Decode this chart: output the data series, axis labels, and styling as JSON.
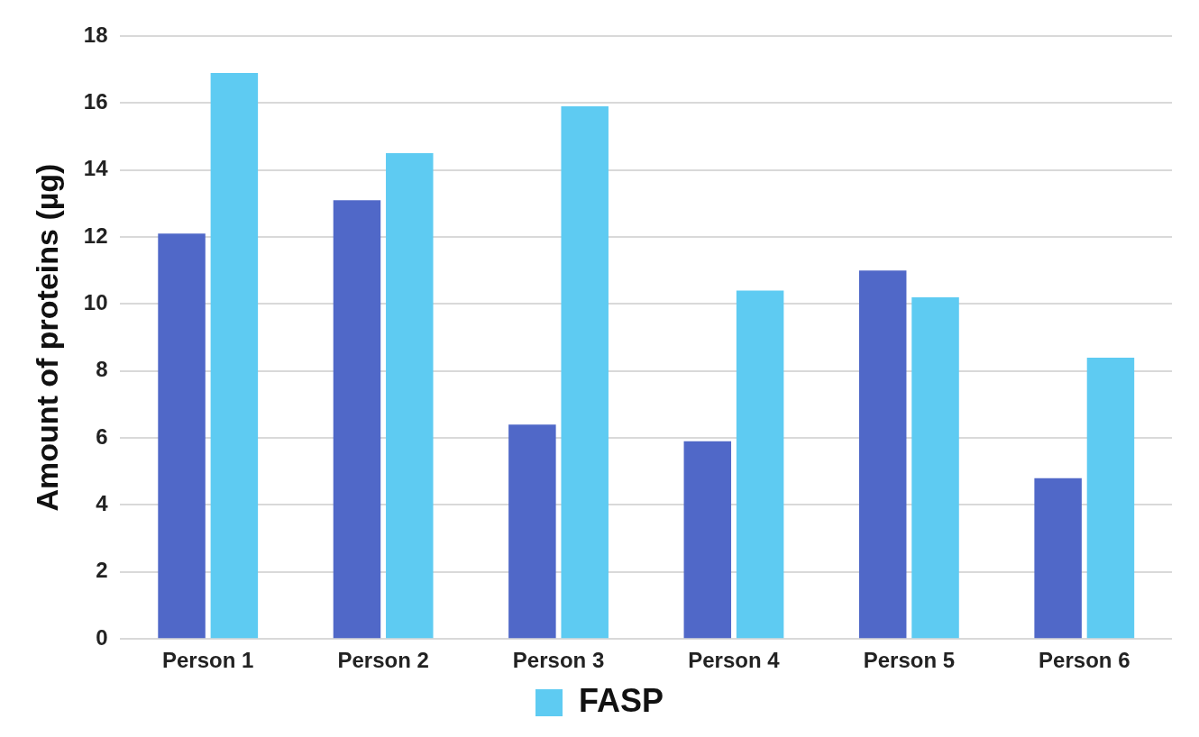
{
  "chart_data": {
    "type": "bar",
    "ylabel": "Amount of proteins (µg)",
    "categories": [
      "Person 1",
      "Person 2",
      "Person 3",
      "Person 4",
      "Person 5",
      "Person 6"
    ],
    "series": [
      {
        "color": "#5068c8",
        "values": [
          12.1,
          13.1,
          6.4,
          5.9,
          11.0,
          4.8
        ]
      },
      {
        "name": "FASP",
        "color": "#5ecbf2",
        "values": [
          16.9,
          14.5,
          15.9,
          10.4,
          10.2,
          8.4
        ]
      }
    ],
    "ylim": [
      0,
      18
    ],
    "yticks": [
      0,
      2,
      4,
      6,
      8,
      10,
      12,
      14,
      16,
      18
    ],
    "grid": "y",
    "legend": "bottom"
  }
}
